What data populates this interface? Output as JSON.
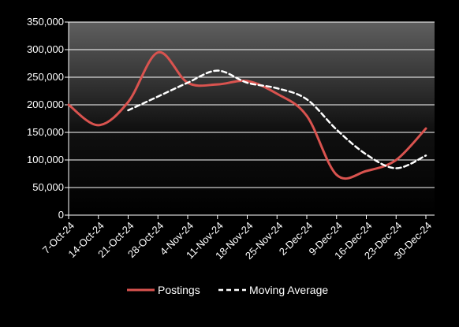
{
  "chart_data": {
    "type": "line",
    "title": "",
    "xlabel": "",
    "ylabel": "",
    "ylim": [
      0,
      350000
    ],
    "y_ticks": [
      "0",
      "50,000",
      "100,000",
      "150,000",
      "200,000",
      "250,000",
      "300,000",
      "350,000"
    ],
    "categories": [
      "7-Oct-24",
      "14-Oct-24",
      "21-Oct-24",
      "28-Oct-24",
      "4-Nov-24",
      "11-Nov-24",
      "18-Nov-24",
      "25-Nov-24",
      "2-Dec-24",
      "9-Dec-24",
      "16-Dec-24",
      "23-Dec-24",
      "30-Dec-24"
    ],
    "grid": true,
    "legend_position": "bottom",
    "series": [
      {
        "name": "Postings",
        "color": "#d9534f",
        "style": "solid",
        "values": [
          200000,
          163000,
          205000,
          295000,
          240000,
          237000,
          243000,
          220000,
          180000,
          73000,
          80000,
          100000,
          157000
        ]
      },
      {
        "name": "Moving Average",
        "color": "#ffffff",
        "style": "dashed",
        "values": [
          null,
          null,
          190000,
          215000,
          240000,
          262000,
          240000,
          230000,
          210000,
          155000,
          110000,
          85000,
          108000
        ]
      }
    ]
  }
}
